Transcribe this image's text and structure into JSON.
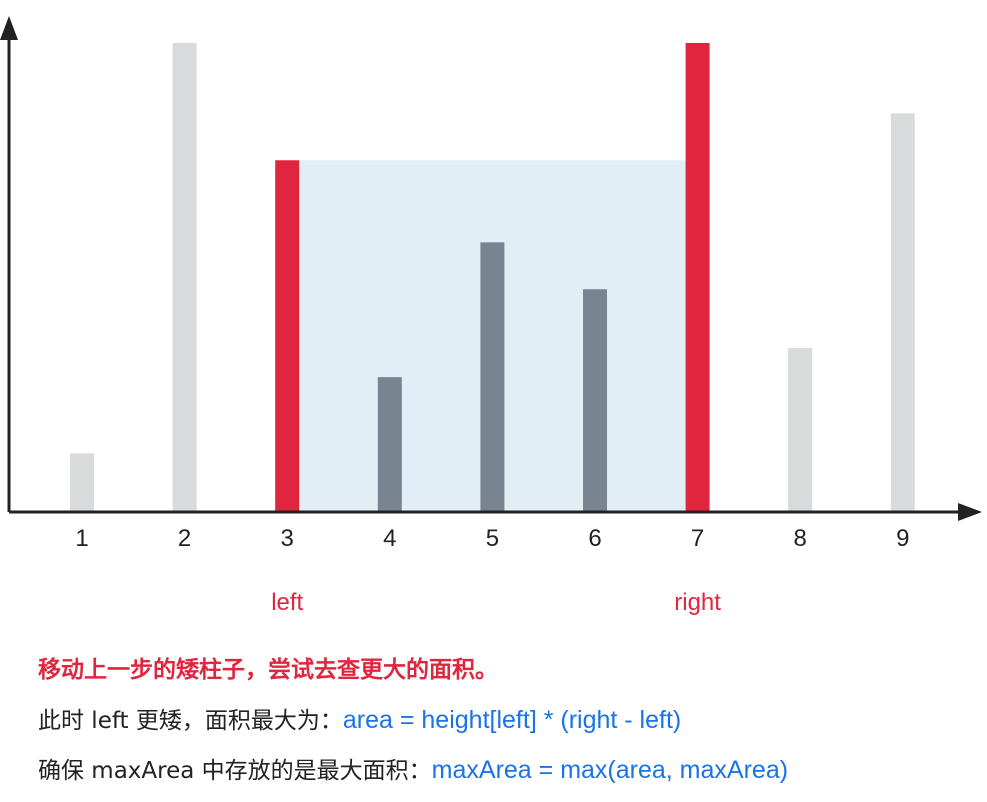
{
  "chart_data": {
    "type": "bar",
    "categories": [
      "1",
      "2",
      "3",
      "4",
      "5",
      "6",
      "7",
      "8",
      "9"
    ],
    "values": [
      1,
      8,
      6,
      2.3,
      4.6,
      3.8,
      8,
      2.8,
      6.8
    ],
    "ylim": [
      0,
      8
    ],
    "left_index": 2,
    "right_index": 6,
    "colors": {
      "inactive": "#d9dadb",
      "inner": "#788590",
      "pointer": "#e0263f",
      "water": "#e1eef6",
      "axis": "#222222"
    }
  },
  "pointers": {
    "left": "left",
    "right": "right"
  },
  "caption": {
    "line1": "移动上一步的矮柱子，尝试去查更大的面积。",
    "line2_text": "此时 left 更矮，面积最大为：",
    "line2_formula": "area = height[left] * (right - left)",
    "line3_text": "确保 maxArea 中存放的是最大面积：",
    "line3_formula": "maxArea = max(area, maxArea)"
  }
}
